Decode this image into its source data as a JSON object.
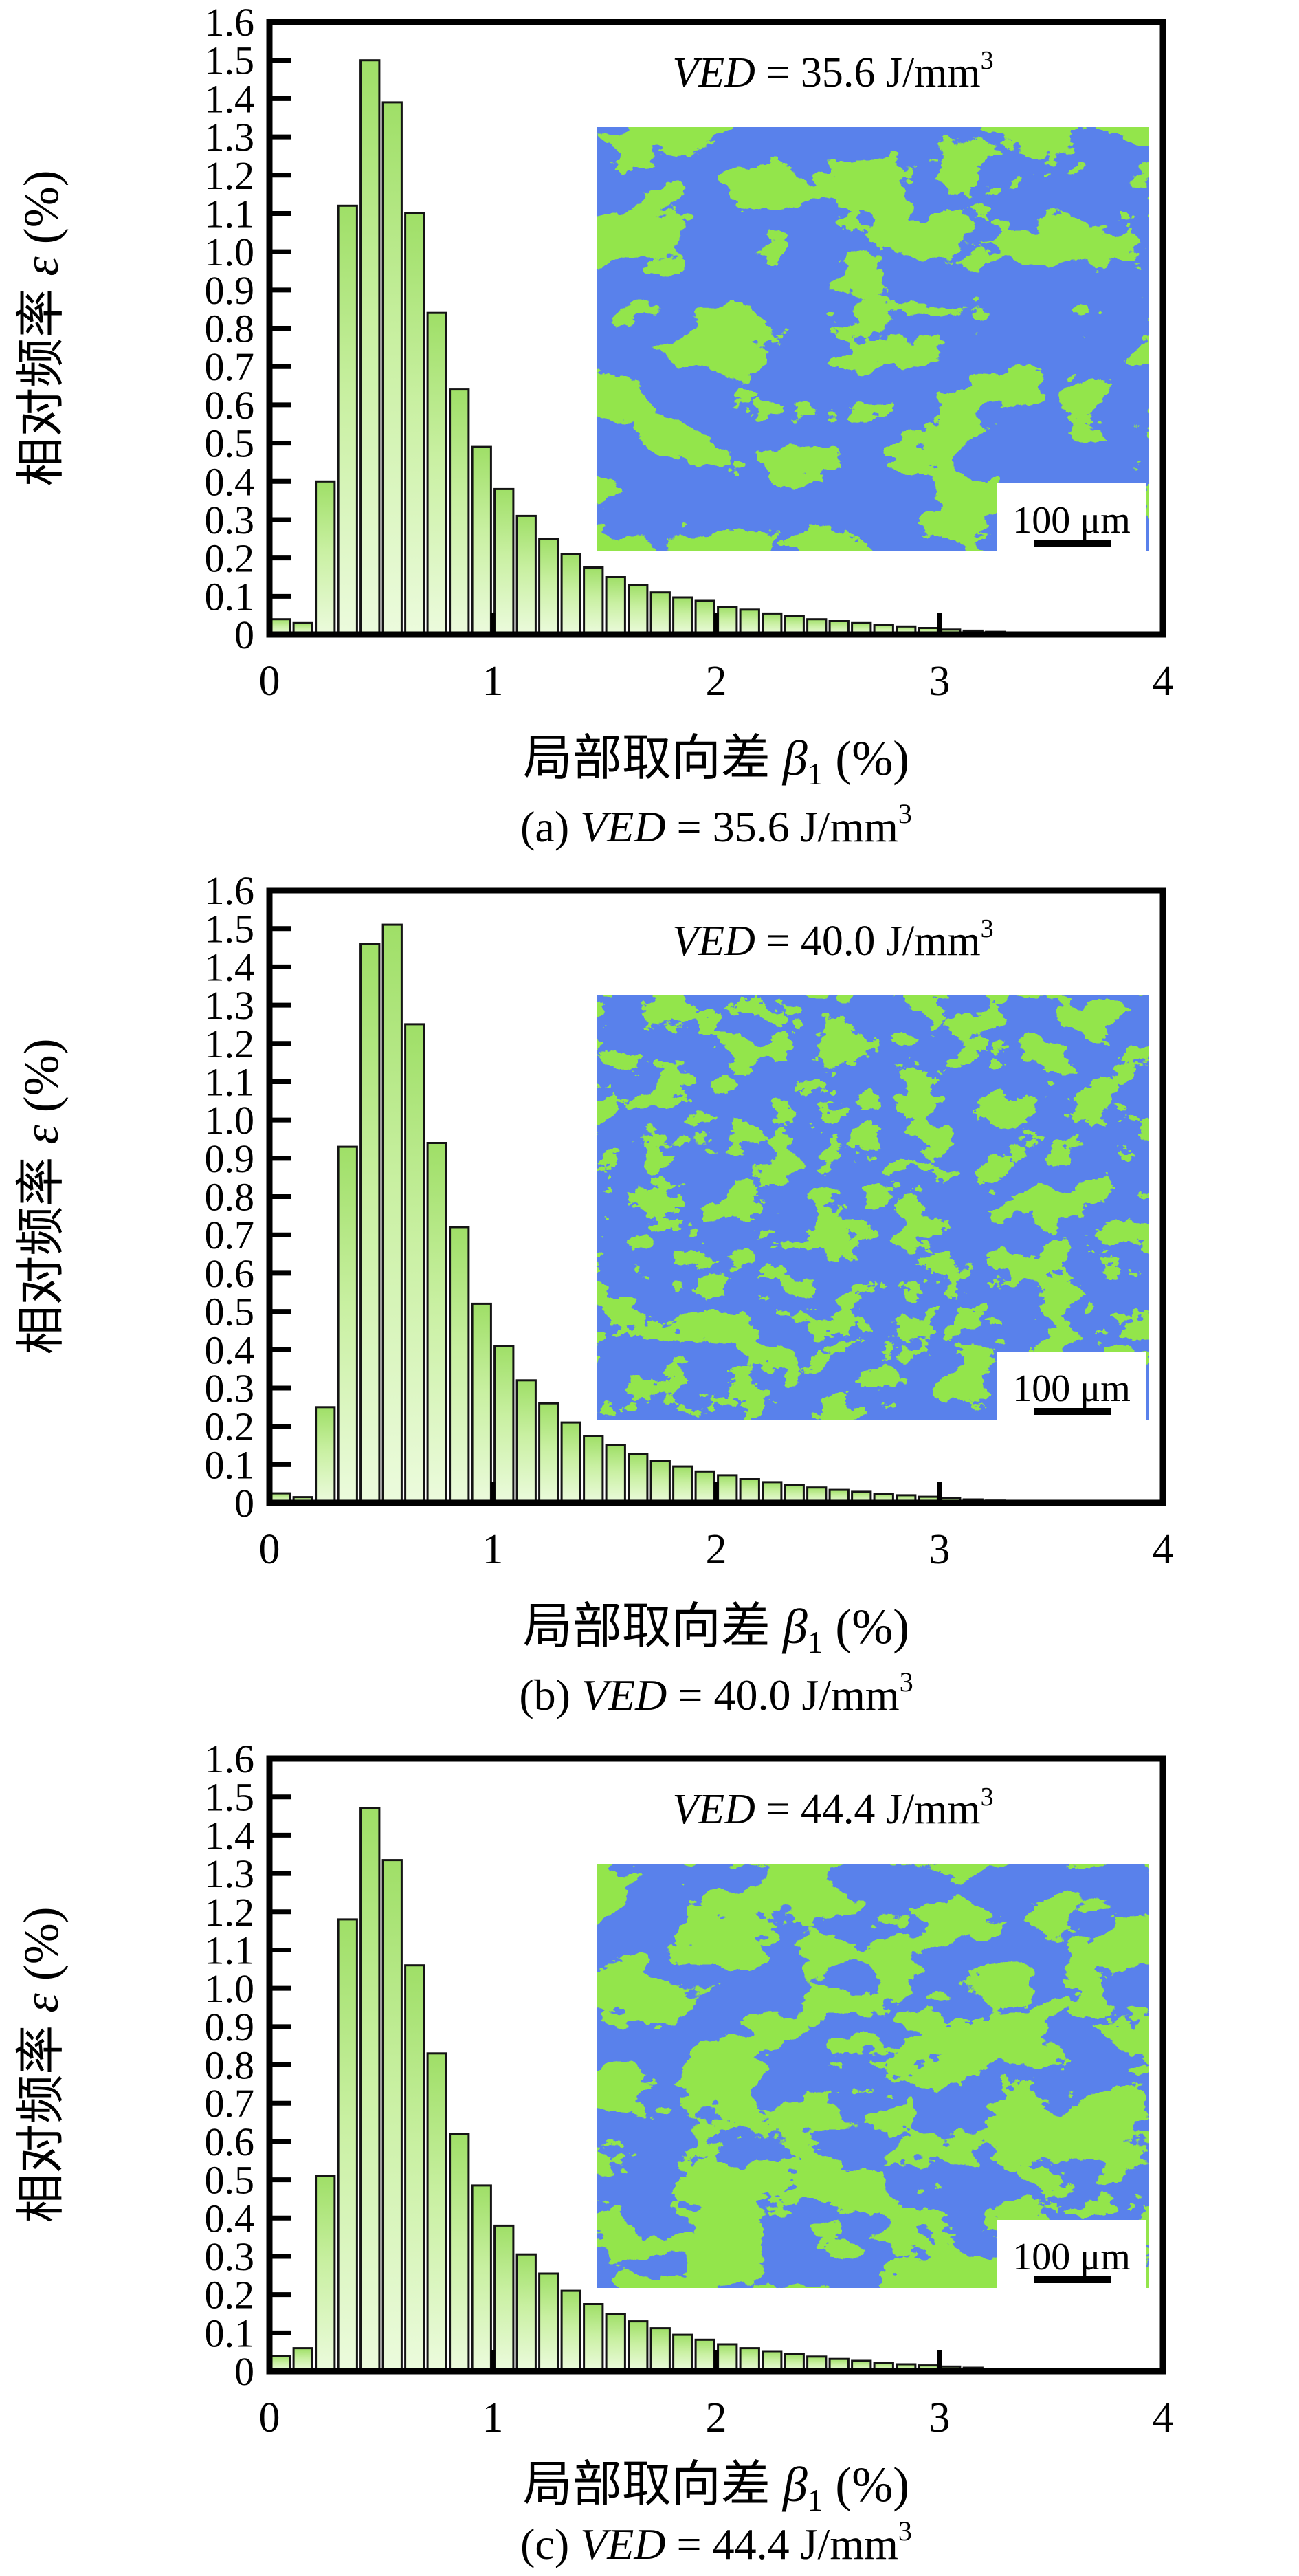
{
  "figure": {
    "background": "#ffffff",
    "axis_color": "#000000",
    "text_color": "#000000",
    "panels": [
      {
        "label": "a",
        "annotation_text": "VED = 35.6 J/mm³",
        "annotation_parts": [
          {
            "t": "VED",
            "style": "italic"
          },
          {
            "t": " = 35.6 J/mm"
          },
          {
            "t": "3",
            "script": "sup"
          }
        ],
        "caption_text": "(a) VED = 35.6 J/mm³",
        "caption_parts": [
          {
            "t": "(a) "
          },
          {
            "t": "VED",
            "style": "italic"
          },
          {
            "t": " = 35.6 J/mm"
          },
          {
            "t": "3",
            "script": "sup"
          }
        ],
        "inset": {
          "scale_bar_label": "100 μm",
          "green": "#4cc417",
          "blue": "#1c38cf"
        }
      },
      {
        "label": "b",
        "annotation_text": "VED = 40.0 J/mm³",
        "annotation_parts": [
          {
            "t": "VED",
            "style": "italic"
          },
          {
            "t": " = 40.0 J/mm"
          },
          {
            "t": "3",
            "script": "sup"
          }
        ],
        "caption_text": "(b) VED = 40.0 J/mm³",
        "caption_parts": [
          {
            "t": "(b) "
          },
          {
            "t": "VED",
            "style": "italic"
          },
          {
            "t": " = 40.0 J/mm"
          },
          {
            "t": "3",
            "script": "sup"
          }
        ],
        "inset": {
          "scale_bar_label": "100 μm",
          "green": "#4cc417",
          "blue": "#1c38cf"
        }
      },
      {
        "label": "c",
        "annotation_text": "VED = 44.4 J/mm³",
        "annotation_parts": [
          {
            "t": "VED",
            "style": "italic"
          },
          {
            "t": " = 44.4 J/mm"
          },
          {
            "t": "3",
            "script": "sup"
          }
        ],
        "caption_text": "(c) VED = 44.4 J/mm³",
        "caption_parts": [
          {
            "t": "(c) "
          },
          {
            "t": "VED",
            "style": "italic"
          },
          {
            "t": " = 44.4 J/mm"
          },
          {
            "t": "3",
            "script": "sup"
          }
        ],
        "inset": {
          "scale_bar_label": "100 μm",
          "green": "#4cc417",
          "blue": "#1c38cf"
        }
      }
    ]
  },
  "chart_data": [
    {
      "type": "bar",
      "panel": "a",
      "title": "VED = 35.6 J/mm³",
      "xlabel": "局部取向差 β1 (%)",
      "ylabel": "相对频率 ε (%)",
      "xlabel_parts": [
        {
          "t": "局部取向差 "
        },
        {
          "t": "β",
          "style": "italic"
        },
        {
          "t": "1",
          "script": "sub"
        },
        {
          "t": " (%)"
        }
      ],
      "ylabel_parts": [
        {
          "t": "相对频率 "
        },
        {
          "t": "ε",
          "style": "italic"
        },
        {
          "t": " (%)"
        }
      ],
      "xlim": [
        0,
        4
      ],
      "ylim": [
        0,
        1.6
      ],
      "x_ticks": [
        0,
        1,
        2,
        3,
        4
      ],
      "y_tick_step": 0.1,
      "grid": false,
      "legend": null,
      "bin_width": 0.1,
      "bin_centers": [
        0.05,
        0.15,
        0.25,
        0.35,
        0.45,
        0.55,
        0.65,
        0.75,
        0.85,
        0.95,
        1.05,
        1.15,
        1.25,
        1.35,
        1.45,
        1.55,
        1.65,
        1.75,
        1.85,
        1.95,
        2.05,
        2.15,
        2.25,
        2.35,
        2.45,
        2.55,
        2.65,
        2.75,
        2.85,
        2.95,
        3.05,
        3.15,
        3.25,
        3.35
      ],
      "values": [
        0.04,
        0.03,
        0.4,
        1.12,
        1.5,
        1.39,
        1.1,
        0.84,
        0.64,
        0.49,
        0.38,
        0.31,
        0.25,
        0.21,
        0.175,
        0.15,
        0.13,
        0.11,
        0.097,
        0.088,
        0.072,
        0.065,
        0.055,
        0.048,
        0.04,
        0.035,
        0.03,
        0.026,
        0.021,
        0.017,
        0.013,
        0.01,
        0.007,
        0.004
      ],
      "bar_fill_top": "#9fdf67",
      "bar_fill_bottom": "#ecfbdd",
      "bar_edge": "#141414"
    },
    {
      "type": "bar",
      "panel": "b",
      "title": "VED = 40.0 J/mm³",
      "xlabel": "局部取向差 β1 (%)",
      "ylabel": "相对频率 ε (%)",
      "xlabel_parts": [
        {
          "t": "局部取向差 "
        },
        {
          "t": "β",
          "style": "italic"
        },
        {
          "t": "1",
          "script": "sub"
        },
        {
          "t": " (%)"
        }
      ],
      "ylabel_parts": [
        {
          "t": "相对频率 "
        },
        {
          "t": "ε",
          "style": "italic"
        },
        {
          "t": " (%)"
        }
      ],
      "xlim": [
        0,
        4
      ],
      "ylim": [
        0,
        1.6
      ],
      "x_ticks": [
        0,
        1,
        2,
        3,
        4
      ],
      "y_tick_step": 0.1,
      "grid": false,
      "legend": null,
      "bin_width": 0.1,
      "bin_centers": [
        0.05,
        0.15,
        0.25,
        0.35,
        0.45,
        0.55,
        0.65,
        0.75,
        0.85,
        0.95,
        1.05,
        1.15,
        1.25,
        1.35,
        1.45,
        1.55,
        1.65,
        1.75,
        1.85,
        1.95,
        2.05,
        2.15,
        2.25,
        2.35,
        2.45,
        2.55,
        2.65,
        2.75,
        2.85,
        2.95,
        3.05,
        3.15,
        3.25,
        3.35
      ],
      "values": [
        0.025,
        0.015,
        0.25,
        0.93,
        1.46,
        1.51,
        1.25,
        0.94,
        0.72,
        0.52,
        0.41,
        0.32,
        0.26,
        0.21,
        0.175,
        0.15,
        0.128,
        0.11,
        0.095,
        0.082,
        0.072,
        0.062,
        0.054,
        0.047,
        0.04,
        0.034,
        0.029,
        0.024,
        0.02,
        0.016,
        0.012,
        0.009,
        0.006,
        0.004
      ],
      "bar_fill_top": "#9fdf67",
      "bar_fill_bottom": "#ecfbdd",
      "bar_edge": "#141414"
    },
    {
      "type": "bar",
      "panel": "c",
      "title": "VED = 44.4 J/mm³",
      "xlabel": "局部取向差 β1 (%)",
      "ylabel": "相对频率 ε (%)",
      "xlabel_parts": [
        {
          "t": "局部取向差 "
        },
        {
          "t": "β",
          "style": "italic"
        },
        {
          "t": "1",
          "script": "sub"
        },
        {
          "t": " (%)"
        }
      ],
      "ylabel_parts": [
        {
          "t": "相对频率 "
        },
        {
          "t": "ε",
          "style": "italic"
        },
        {
          "t": " (%)"
        }
      ],
      "xlim": [
        0,
        4
      ],
      "ylim": [
        0,
        1.6
      ],
      "x_ticks": [
        0,
        1,
        2,
        3,
        4
      ],
      "y_tick_step": 0.1,
      "grid": false,
      "legend": null,
      "bin_width": 0.1,
      "bin_centers": [
        0.05,
        0.15,
        0.25,
        0.35,
        0.45,
        0.55,
        0.65,
        0.75,
        0.85,
        0.95,
        1.05,
        1.15,
        1.25,
        1.35,
        1.45,
        1.55,
        1.65,
        1.75,
        1.85,
        1.95,
        2.05,
        2.15,
        2.25,
        2.35,
        2.45,
        2.55,
        2.65,
        2.75,
        2.85,
        2.95,
        3.05,
        3.15,
        3.25,
        3.35
      ],
      "values": [
        0.04,
        0.06,
        0.51,
        1.18,
        1.47,
        1.335,
        1.06,
        0.83,
        0.62,
        0.485,
        0.38,
        0.305,
        0.255,
        0.21,
        0.175,
        0.15,
        0.13,
        0.112,
        0.095,
        0.082,
        0.07,
        0.06,
        0.052,
        0.044,
        0.038,
        0.032,
        0.027,
        0.022,
        0.018,
        0.015,
        0.012,
        0.009,
        0.006,
        0.004
      ],
      "bar_fill_top": "#9fdf67",
      "bar_fill_bottom": "#ecfbdd",
      "bar_edge": "#141414"
    }
  ]
}
